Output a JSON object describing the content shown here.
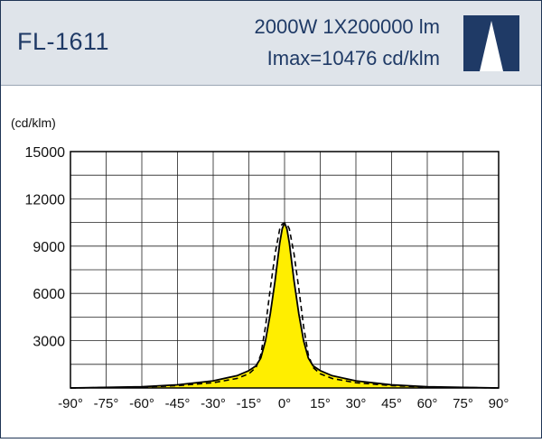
{
  "header": {
    "model": "FL-1611",
    "spec_line_1": "2000W  1X200000  lm",
    "spec_line_2": "Imax=10476 cd/klm"
  },
  "colors": {
    "header_bg": "#dfe4ea",
    "title_text": "#1f3a66",
    "logo_bg": "#1f3a66",
    "fill": "#ffee00",
    "curve": "#000000",
    "grid": "#222222"
  },
  "chart_data": {
    "type": "line",
    "ylabel": "(cd/klm)",
    "xlim": [
      -90,
      90
    ],
    "ylim": [
      0,
      15000
    ],
    "grid": true,
    "x_ticks": [
      "-90°",
      "-75°",
      "-60°",
      "-45°",
      "-30°",
      "-15°",
      "0°",
      "15°",
      "30°",
      "45°",
      "60°",
      "75°",
      "90°"
    ],
    "y_ticks": [
      "15000",
      "12000",
      "9000",
      "6000",
      "3000"
    ],
    "series": [
      {
        "style": "solid-filled",
        "x": [
          -90,
          -60,
          -45,
          -30,
          -20,
          -15,
          -12,
          -10,
          -8,
          -6,
          -4,
          -2,
          -1,
          0,
          1,
          2,
          4,
          6,
          8,
          10,
          12,
          15,
          20,
          30,
          45,
          60,
          90
        ],
        "values": [
          0,
          80,
          200,
          450,
          780,
          1100,
          1400,
          1900,
          3000,
          4700,
          6800,
          9200,
          10100,
          10476,
          10100,
          9200,
          6800,
          4700,
          3000,
          1900,
          1400,
          1100,
          780,
          450,
          200,
          80,
          0
        ]
      },
      {
        "style": "dashed",
        "x": [
          -90,
          -60,
          -45,
          -30,
          -20,
          -15,
          -12,
          -10,
          -8,
          -6,
          -4,
          -2,
          -1,
          0,
          1,
          2,
          4,
          6,
          8,
          10,
          12,
          15,
          20,
          30,
          45,
          60,
          90
        ],
        "values": [
          0,
          60,
          150,
          330,
          600,
          900,
          1300,
          2100,
          3900,
          6300,
          8500,
          10100,
          10400,
          10476,
          10400,
          10100,
          8500,
          6300,
          3900,
          2100,
          1300,
          900,
          600,
          330,
          150,
          60,
          0
        ]
      }
    ]
  }
}
